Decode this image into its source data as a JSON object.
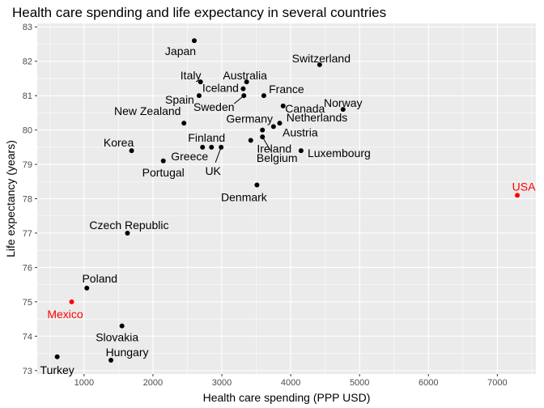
{
  "chart_data": {
    "type": "scatter",
    "title": "Health care spending and life expectancy in several countries",
    "xlabel": "Health care spending (PPP USD)",
    "ylabel": "Life expectancy (years)",
    "xlim": [
      320,
      7560
    ],
    "ylim": [
      72.9,
      83.1
    ],
    "x_ticks": [
      1000,
      2000,
      3000,
      4000,
      5000,
      6000,
      7000
    ],
    "y_ticks": [
      73,
      74,
      75,
      76,
      77,
      78,
      79,
      80,
      81,
      82,
      83
    ],
    "grid": true,
    "legend": "none",
    "colors": {
      "panel": "#ebebeb",
      "grid": "#ffffff",
      "point": "#000000",
      "highlight": "#ff0000"
    },
    "points": [
      {
        "label": "Japan",
        "x": 2600,
        "y": 82.6
      },
      {
        "label": "Switzerland",
        "x": 4420,
        "y": 81.9
      },
      {
        "label": "Italy",
        "x": 2690,
        "y": 81.4
      },
      {
        "label": "Australia",
        "x": 3360,
        "y": 81.4
      },
      {
        "label": "Spain",
        "x": 2670,
        "y": 81.0
      },
      {
        "label": "Iceland",
        "x": 3310,
        "y": 81.2
      },
      {
        "label": "France",
        "x": 3610,
        "y": 81.0
      },
      {
        "label": "Sweden",
        "x": 3320,
        "y": 81.0
      },
      {
        "label": "Canada",
        "x": 3890,
        "y": 80.7
      },
      {
        "label": "Norway",
        "x": 4760,
        "y": 80.6
      },
      {
        "label": "New Zealand",
        "x": 2450,
        "y": 80.2
      },
      {
        "label": "Germany",
        "x": 3590,
        "y": 80.0
      },
      {
        "label": "Netherlands",
        "x": 3840,
        "y": 80.2
      },
      {
        "label": "Finland",
        "x": 2850,
        "y": 79.5
      },
      {
        "label": "Austria",
        "x": 3750,
        "y": 80.1
      },
      {
        "label": "Korea",
        "x": 1690,
        "y": 79.4
      },
      {
        "label": "Greece",
        "x": 2720,
        "y": 79.5
      },
      {
        "label": "Ireland",
        "x": 3420,
        "y": 79.7
      },
      {
        "label": "Luxembourg",
        "x": 4150,
        "y": 79.4
      },
      {
        "label": "Portugal",
        "x": 2150,
        "y": 79.1
      },
      {
        "label": "UK",
        "x": 2990,
        "y": 79.5
      },
      {
        "label": "Belgium",
        "x": 3590,
        "y": 79.8
      },
      {
        "label": "Denmark",
        "x": 3510,
        "y": 78.4
      },
      {
        "label": "USA",
        "x": 7290,
        "y": 78.1,
        "highlight": true
      },
      {
        "label": "Czech Republic",
        "x": 1630,
        "y": 77.0
      },
      {
        "label": "Poland",
        "x": 1040,
        "y": 75.4
      },
      {
        "label": "Mexico",
        "x": 820,
        "y": 75.0,
        "highlight": true
      },
      {
        "label": "Slovakia",
        "x": 1550,
        "y": 74.3
      },
      {
        "label": "Hungary",
        "x": 1390,
        "y": 73.3
      },
      {
        "label": "Turkey",
        "x": 610,
        "y": 73.4
      }
    ]
  }
}
